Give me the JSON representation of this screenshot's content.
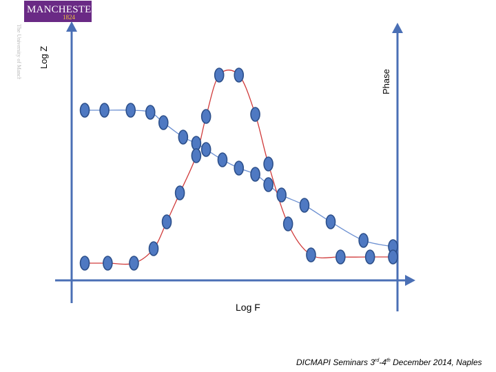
{
  "logo": {
    "word": "MANCHESTER",
    "year": "1824"
  },
  "side_text": "The University of Manchester",
  "axes": {
    "y_left": "Log Z",
    "y_right": "Phase",
    "x": "Log F"
  },
  "footer": {
    "prefix": "DICMAPI Seminars 3",
    "sup1": "rd",
    "mid": "-4",
    "sup2": "th",
    "suffix": " December 2014, Naples"
  },
  "colors": {
    "axis": "#4a6fb5",
    "marker_fill": "#4f79c2",
    "marker_stroke": "#2c4f8a",
    "logz_curve": "#6b8fd1",
    "phase_curve": "#d03a3a",
    "logo_bg": "#6a2a85",
    "logo_year": "#f3c43a"
  },
  "chart_data": {
    "type": "scatter",
    "xlabel": "Log F",
    "ylabel": "Log Z",
    "y2label": "Phase",
    "series": [
      {
        "curve": "blue",
        "points": [
          [
            0.04,
            0.8
          ],
          [
            0.1,
            0.8
          ],
          [
            0.18,
            0.8
          ],
          [
            0.24,
            0.79
          ],
          [
            0.28,
            0.74
          ],
          [
            0.34,
            0.67
          ],
          [
            0.38,
            0.64
          ],
          [
            0.41,
            0.61
          ],
          [
            0.46,
            0.56
          ],
          [
            0.51,
            0.52
          ],
          [
            0.56,
            0.49
          ],
          [
            0.6,
            0.44
          ],
          [
            0.64,
            0.39
          ],
          [
            0.71,
            0.34
          ],
          [
            0.79,
            0.26
          ],
          [
            0.89,
            0.17
          ],
          [
            0.98,
            0.14
          ]
        ]
      },
      {
        "curve": "red",
        "points": [
          [
            0.04,
            0.06
          ],
          [
            0.11,
            0.06
          ],
          [
            0.19,
            0.06
          ],
          [
            0.25,
            0.13
          ],
          [
            0.29,
            0.26
          ],
          [
            0.33,
            0.4
          ],
          [
            0.38,
            0.58
          ],
          [
            0.41,
            0.77
          ],
          [
            0.45,
            0.97
          ],
          [
            0.51,
            0.97
          ],
          [
            0.56,
            0.78
          ],
          [
            0.6,
            0.54
          ],
          [
            0.66,
            0.25
          ],
          [
            0.73,
            0.1
          ],
          [
            0.82,
            0.09
          ],
          [
            0.91,
            0.09
          ],
          [
            0.98,
            0.09
          ]
        ]
      }
    ]
  }
}
